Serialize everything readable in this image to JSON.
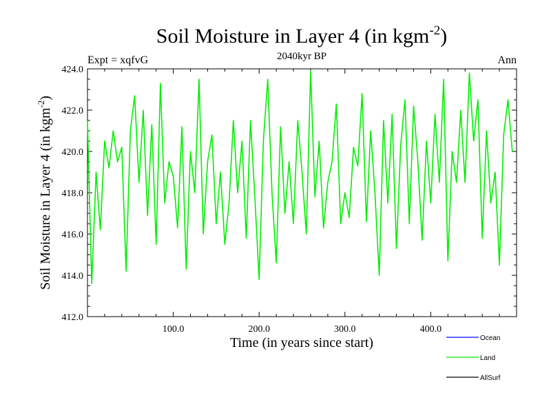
{
  "chart_data": {
    "type": "line",
    "title": "Soil Moisture in Layer 4 (in kgm",
    "title_sup": "-2",
    "title_end": ")",
    "subtitle": "2040kyr BP",
    "left_label": "Expt = xqfvG",
    "right_label": "Ann",
    "xlabel": "Time (in years since start)",
    "ylabel": "Soil Moisture in Layer 4 (in kgm",
    "ylabel_sup": "-2",
    "ylabel_end": ")",
    "xlim": [
      0,
      500
    ],
    "ylim": [
      412,
      424
    ],
    "xticks": [
      100,
      200,
      300,
      400
    ],
    "xtick_labels": [
      "100.0",
      "200.0",
      "300.0",
      "400.0"
    ],
    "yticks": [
      412,
      414,
      416,
      418,
      420,
      422,
      424
    ],
    "ytick_labels": [
      "412.0",
      "414.0",
      "416.0",
      "418.0",
      "420.0",
      "422.0",
      "424.0"
    ],
    "legend": [
      {
        "name": "Ocean",
        "color": "#0000ff"
      },
      {
        "name": "Land",
        "color": "#00ee00"
      },
      {
        "name": "AllSurf",
        "color": "#000000"
      }
    ],
    "series": [
      {
        "name": "Land",
        "color": "#00ee00",
        "x": [
          0,
          5,
          10,
          15,
          20,
          25,
          30,
          35,
          40,
          45,
          50,
          55,
          60,
          65,
          70,
          75,
          80,
          85,
          90,
          95,
          100,
          105,
          110,
          115,
          120,
          125,
          130,
          135,
          140,
          145,
          150,
          155,
          160,
          165,
          170,
          175,
          180,
          185,
          190,
          195,
          200,
          205,
          210,
          215,
          220,
          225,
          230,
          235,
          240,
          245,
          250,
          255,
          260,
          265,
          270,
          275,
          280,
          285,
          290,
          295,
          300,
          305,
          310,
          315,
          320,
          325,
          330,
          335,
          340,
          345,
          350,
          355,
          360,
          365,
          370,
          375,
          380,
          385,
          390,
          395,
          400,
          405,
          410,
          415,
          420,
          425,
          430,
          435,
          440,
          445,
          450,
          455,
          460,
          465,
          470,
          475,
          480,
          485,
          490,
          495
        ],
        "y": [
          421.5,
          413.6,
          419.0,
          416.2,
          420.5,
          419.2,
          421.0,
          419.5,
          420.2,
          414.2,
          421.0,
          422.7,
          418.5,
          422.0,
          416.9,
          421.3,
          415.5,
          423.3,
          417.5,
          419.5,
          418.8,
          416.3,
          421.2,
          414.3,
          420.0,
          418.0,
          423.5,
          416.0,
          419.5,
          420.8,
          416.5,
          419.0,
          415.5,
          417.5,
          421.5,
          418.0,
          420.5,
          415.8,
          421.5,
          417.8,
          413.8,
          420.5,
          423.5,
          418.0,
          414.6,
          421.2,
          417.0,
          419.5,
          416.5,
          421.5,
          419.0,
          416.0,
          423.9,
          417.8,
          420.5,
          416.3,
          418.5,
          419.5,
          422.3,
          416.5,
          418.0,
          416.8,
          420.2,
          419.3,
          422.8,
          416.6,
          421.0,
          418.0,
          414.0,
          421.5,
          417.5,
          421.8,
          415.3,
          420.3,
          422.5,
          416.5,
          422.2,
          419.5,
          415.7,
          420.5,
          417.5,
          421.8,
          418.5,
          423.5,
          414.7,
          420.0,
          418.5,
          422.0,
          418.5,
          423.8,
          420.5,
          422.5,
          415.8,
          421.0,
          417.5,
          419.0,
          414.5,
          420.8,
          422.5,
          420.0
        ]
      }
    ]
  }
}
